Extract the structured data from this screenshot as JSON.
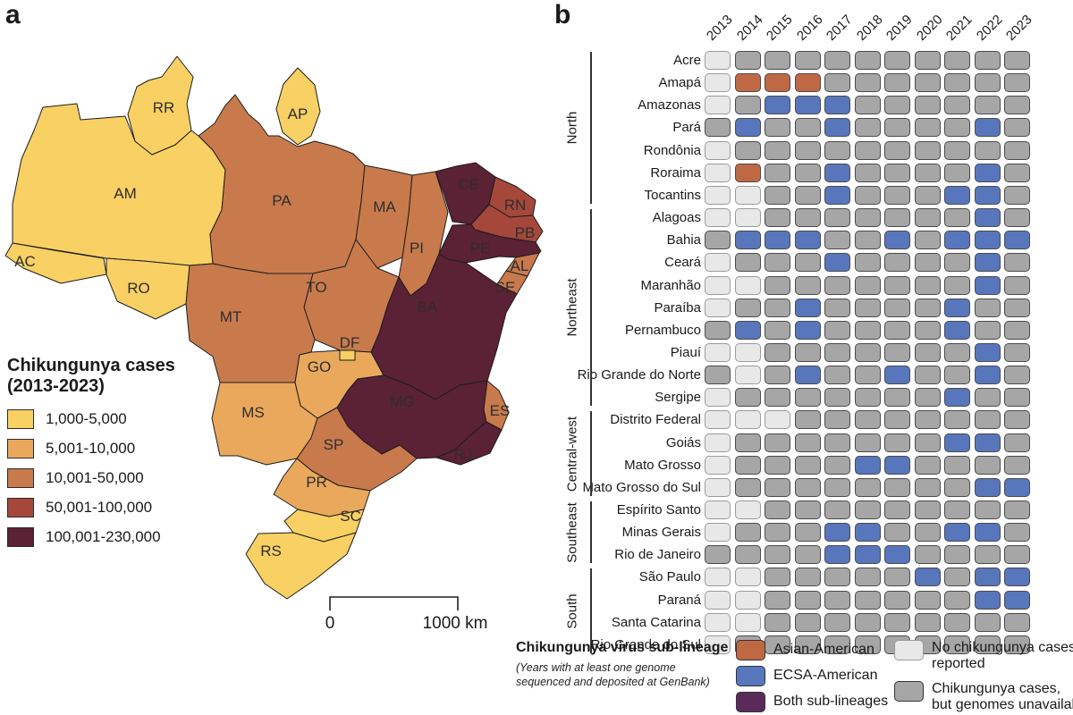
{
  "panels": {
    "a_label": "a",
    "b_label": "b"
  },
  "map": {
    "legend_title_line1": "Chikungunya cases",
    "legend_title_line2": "(2013-2023)",
    "scale_bar": {
      "start_label": "0",
      "end_label": "1000 km"
    }
  },
  "sublineage": {
    "title": "Chikungunya virus sub-lineage",
    "subtitle_line1": "(Years with at least one genome",
    "subtitle_line2": "sequenced and deposited at GenBank)"
  },
  "chart_data": [
    {
      "type": "choropleth",
      "title": "Chikungunya cases (2013-2023)",
      "region_shown": "Brazil states",
      "legend_bins": [
        "1,000-5,000",
        "5,001-10,000",
        "10,001-50,000",
        "50,001-100,000",
        "100,001-230,000"
      ],
      "bin_colors": [
        "#F8D064",
        "#E9A85C",
        "#C87A4C",
        "#A5483B",
        "#5B2135"
      ],
      "states": [
        {
          "code": "AC",
          "bin": 1
        },
        {
          "code": "AM",
          "bin": 1
        },
        {
          "code": "RR",
          "bin": 1
        },
        {
          "code": "AP",
          "bin": 1
        },
        {
          "code": "RO",
          "bin": 1
        },
        {
          "code": "PA",
          "bin": 3
        },
        {
          "code": "MA",
          "bin": 3
        },
        {
          "code": "PI",
          "bin": 3
        },
        {
          "code": "CE",
          "bin": 5
        },
        {
          "code": "RN",
          "bin": 4
        },
        {
          "code": "PB",
          "bin": 4
        },
        {
          "code": "PE",
          "bin": 5
        },
        {
          "code": "AL",
          "bin": 3
        },
        {
          "code": "SE",
          "bin": 3
        },
        {
          "code": "BA",
          "bin": 5
        },
        {
          "code": "TO",
          "bin": 3
        },
        {
          "code": "MT",
          "bin": 3
        },
        {
          "code": "GO",
          "bin": 2
        },
        {
          "code": "DF",
          "bin": 1
        },
        {
          "code": "MS",
          "bin": 2
        },
        {
          "code": "MG",
          "bin": 5
        },
        {
          "code": "ES",
          "bin": 3
        },
        {
          "code": "SP",
          "bin": 3
        },
        {
          "code": "RJ",
          "bin": 5
        },
        {
          "code": "PR",
          "bin": 2
        },
        {
          "code": "SC",
          "bin": 1
        },
        {
          "code": "RS",
          "bin": 1
        }
      ],
      "scale_bar": {
        "start": "0",
        "end": "1000 km"
      }
    },
    {
      "type": "heatmap",
      "x_years": [
        "2013",
        "2014",
        "2015",
        "2016",
        "2017",
        "2018",
        "2019",
        "2020",
        "2021",
        "2022",
        "2023"
      ],
      "cell_categories": {
        "n": "No chikungunya cases reported",
        "g": "Chikungunya cases, but genomes unavailable",
        "a": "Asian-American",
        "e": "ECSA-American",
        "b": "Both sub-lineages"
      },
      "cell_colors": {
        "n": "#E8E8E8",
        "g": "#A6A6A6",
        "a": "#BF6844",
        "e": "#5876BC",
        "b": "#5A2A5B"
      },
      "legend_items": [
        {
          "key": "a",
          "label_lines": [
            "Asian-American"
          ]
        },
        {
          "key": "e",
          "label_lines": [
            "ECSA-American"
          ]
        },
        {
          "key": "b",
          "label_lines": [
            "Both sub-lineages"
          ]
        },
        {
          "key": "n",
          "label_lines": [
            "No chikungunya cases",
            "reported"
          ]
        },
        {
          "key": "g",
          "label_lines": [
            "Chikungunya cases,",
            "but genomes unavailable"
          ]
        }
      ],
      "rows": [
        {
          "state": "Acre",
          "region": "North",
          "cells": "ngggggggggg"
        },
        {
          "state": "Amapá",
          "region": "North",
          "cells": "naaaggggggg"
        },
        {
          "state": "Amazonas",
          "region": "North",
          "cells": "ngeeegggggg"
        },
        {
          "state": "Pará",
          "region": "North",
          "cells": "geggeggggeg"
        },
        {
          "state": "Rondônia",
          "region": "North",
          "cells": "ngggggggggg"
        },
        {
          "state": "Roraima",
          "region": "North",
          "cells": "naggeggggeg"
        },
        {
          "state": "Tocantins",
          "region": "North",
          "cells": "nnggegggeeg"
        },
        {
          "state": "Alagoas",
          "region": "Northeast",
          "cells": "nngggggggeg"
        },
        {
          "state": "Bahia",
          "region": "Northeast",
          "cells": "geeeggegeee"
        },
        {
          "state": "Ceará",
          "region": "Northeast",
          "cells": "ngggeggggeg"
        },
        {
          "state": "Maranhão",
          "region": "Northeast",
          "cells": "nngggggggeg"
        },
        {
          "state": "Paraíba",
          "region": "Northeast",
          "cells": "nggeggggegg"
        },
        {
          "state": "Pernambuco",
          "region": "Northeast",
          "cells": "gegeggggegg"
        },
        {
          "state": "Piauí",
          "region": "Northeast",
          "cells": "nngggggggeg"
        },
        {
          "state": "Rio Grande do Norte",
          "region": "Northeast",
          "cells": "gngeggeggeg"
        },
        {
          "state": "Sergipe",
          "region": "Northeast",
          "cells": "ngggggggegg"
        },
        {
          "state": "Distrito Federal",
          "region": "Central-west",
          "cells": "nnngggggggg"
        },
        {
          "state": "Goiás",
          "region": "Central-west",
          "cells": "ngggggggeeg"
        },
        {
          "state": "Mato Grosso",
          "region": "Central-west",
          "cells": "nggggeegggg"
        },
        {
          "state": "Mato Grosso do Sul",
          "region": "Central-west",
          "cells": "nggggggggee"
        },
        {
          "state": "Espírito Santo",
          "region": "Southeast",
          "cells": "nnggggggggg"
        },
        {
          "state": "Minas Gerais",
          "region": "Southeast",
          "cells": "ngggeeggeeg"
        },
        {
          "state": "Rio de Janeiro",
          "region": "Southeast",
          "cells": "ggggeeegggg"
        },
        {
          "state": "São Paulo",
          "region": "South",
          "cells": "nngggggegee"
        },
        {
          "state": "Paraná",
          "region": "South",
          "cells": "nngggggggee"
        },
        {
          "state": "Santa Catarina",
          "region": "South",
          "cells": "nnggggggggg"
        },
        {
          "state": "Rio Grande do Sul",
          "region": "South",
          "cells": "ngggggggggg"
        }
      ]
    }
  ]
}
